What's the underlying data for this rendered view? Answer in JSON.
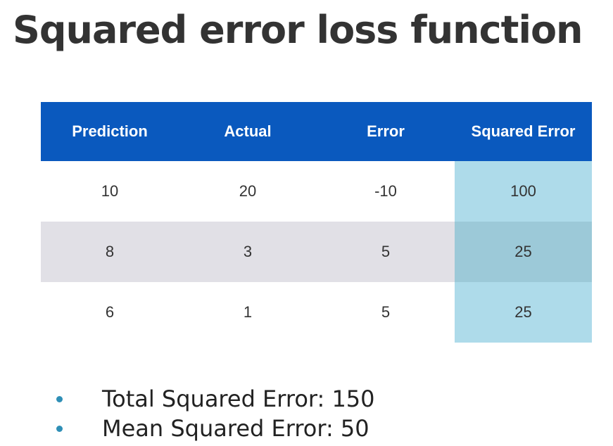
{
  "title": "Squared error loss function",
  "table": {
    "headers": [
      "Prediction",
      "Actual",
      "Error",
      "Squared Error"
    ],
    "rows": [
      [
        "10",
        "20",
        "-10",
        "100"
      ],
      [
        "8",
        "3",
        "5",
        "25"
      ],
      [
        "6",
        "1",
        "5",
        "25"
      ]
    ]
  },
  "bullets": [
    "Total Squared Error: 150",
    "Mean Squared Error: 50"
  ],
  "colors": {
    "header_bg": "#0a59be",
    "highlight_column": "#aedbea",
    "alt_row": "#e1e0e6",
    "bullet_dot": "#2f8fb6"
  }
}
